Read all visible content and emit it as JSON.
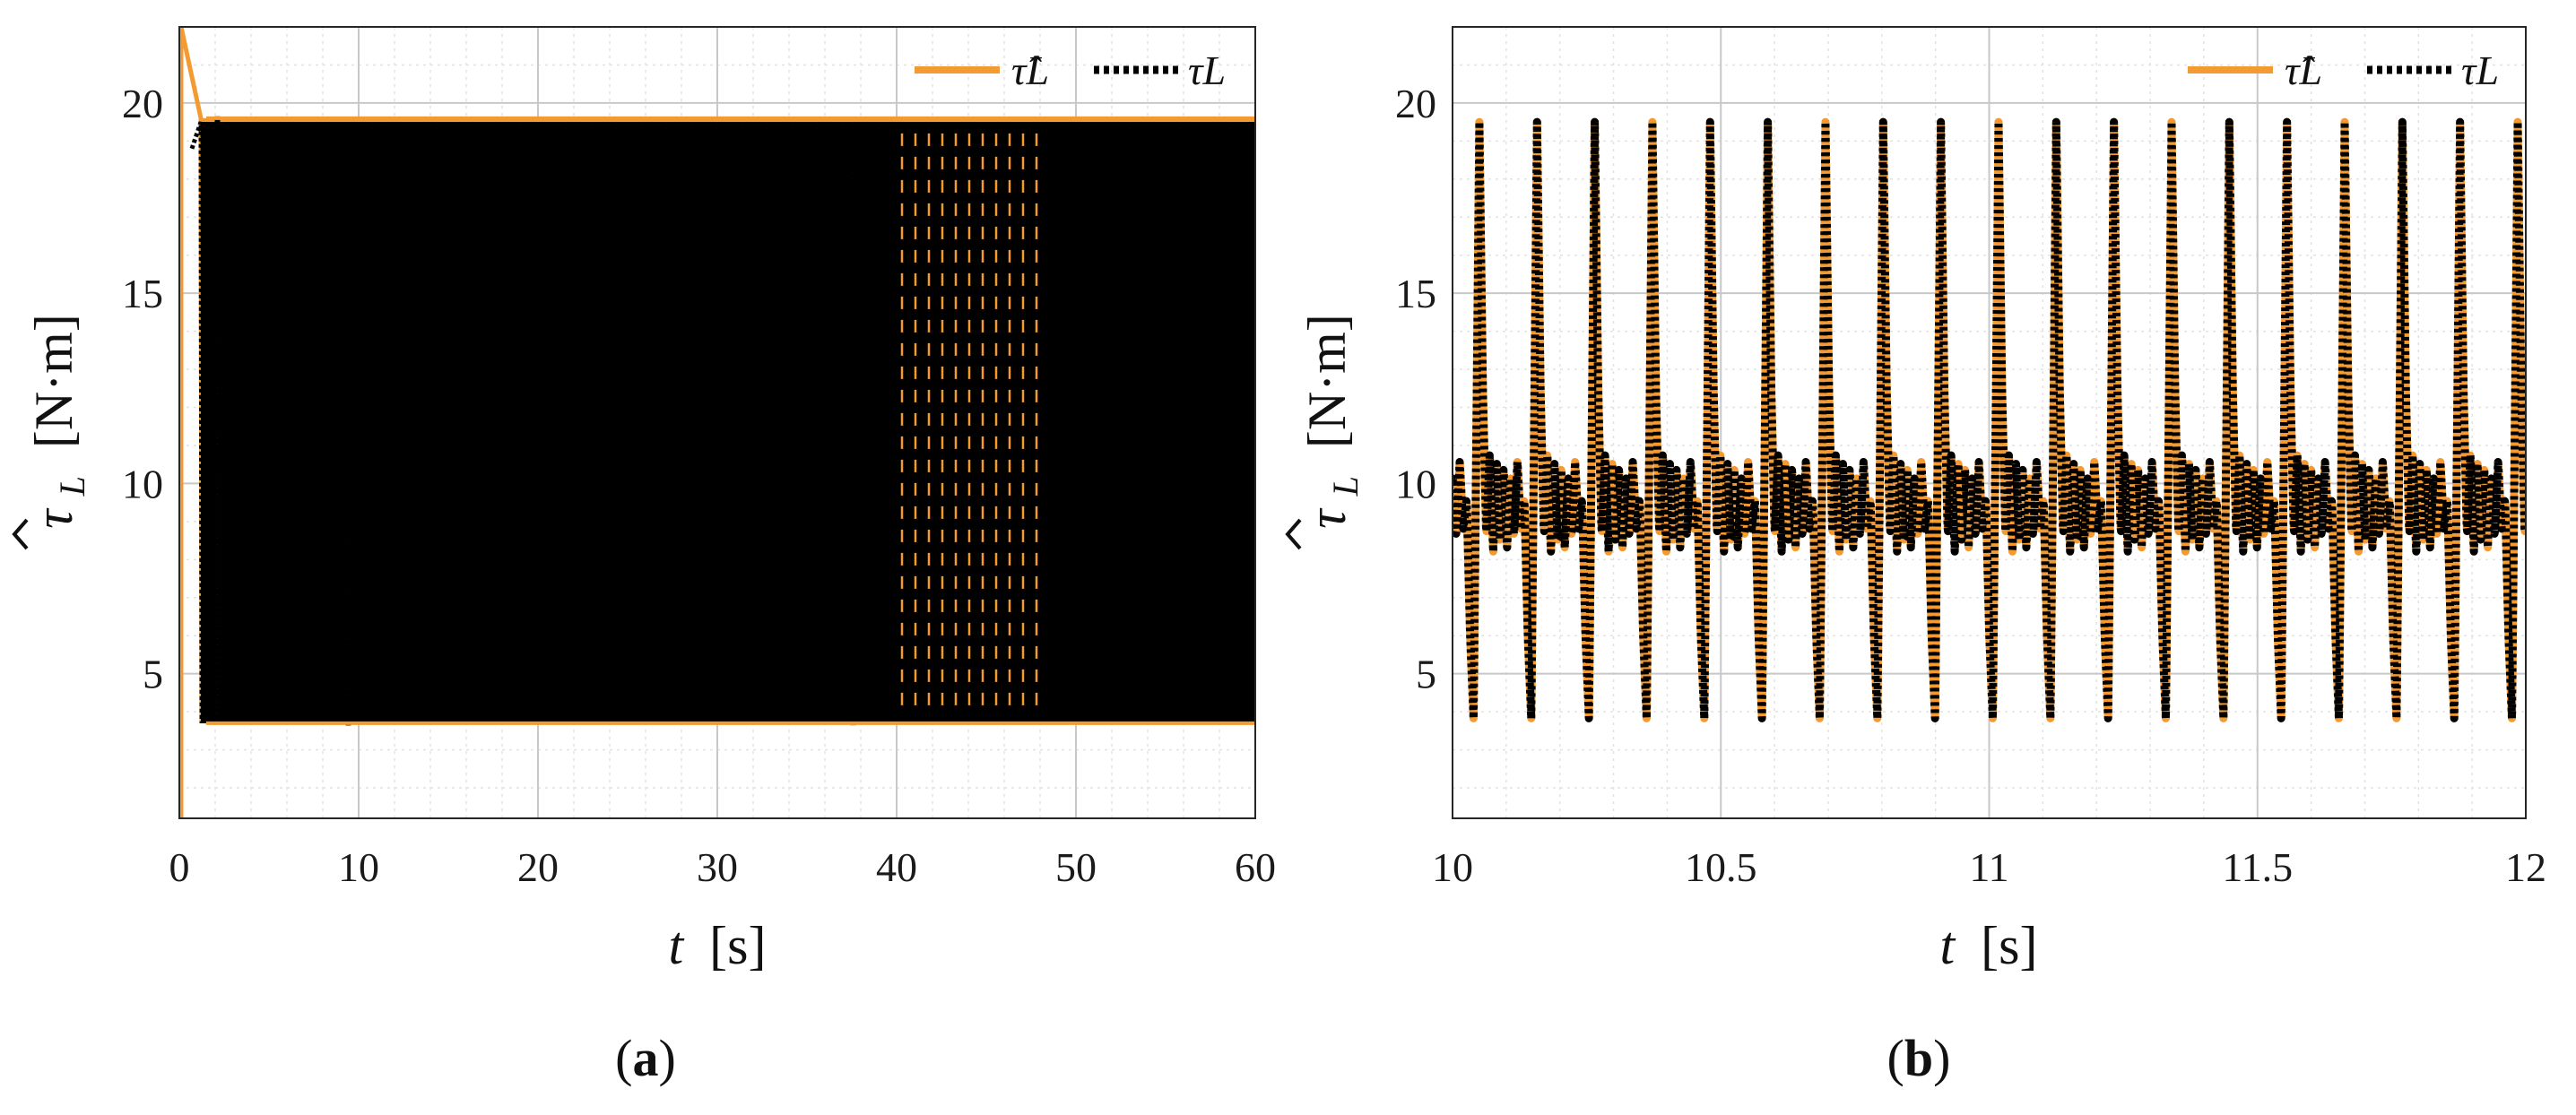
{
  "colors": {
    "estimate": "#f39a33",
    "actual": "#000000",
    "grid_major": "#c8c8c8",
    "grid_minor": "#e2e2e2"
  },
  "chart_data": [
    {
      "type": "line",
      "panel_label_parts": [
        "(",
        "a",
        ")"
      ],
      "xlabel_parts": [
        "t",
        "[s]"
      ],
      "ylabel_parts": [
        "τ",
        "L",
        "[N·m]"
      ],
      "xlim": [
        0,
        60
      ],
      "ylim": [
        1.2,
        22
      ],
      "xticks": [
        "0",
        "10",
        "20",
        "30",
        "40",
        "50",
        "60"
      ],
      "xtick_values": [
        0,
        10,
        20,
        30,
        40,
        50,
        60
      ],
      "yticks": [
        "5",
        "10",
        "15",
        "20"
      ],
      "ytick_values": [
        5,
        10,
        15,
        20
      ],
      "grid": true,
      "minor_grid": true,
      "legend_placement": "top-right",
      "series": [
        {
          "name": "τ̂L",
          "style": "solid",
          "period": 0.1,
          "min": 3.7,
          "max": 19.6,
          "t_start": 0.1,
          "t_end": 60
        },
        {
          "name": "τL",
          "style": "dotted",
          "period": 0.1,
          "min": 3.7,
          "max": 19.5,
          "t_start": 0.7,
          "t_end": 60
        }
      ]
    },
    {
      "type": "line",
      "panel_label_parts": [
        "(",
        "b",
        ")"
      ],
      "xlabel_parts": [
        "t",
        "[s]"
      ],
      "ylabel_parts": [
        "τ",
        "L",
        "[N·m]"
      ],
      "xlim": [
        10,
        12
      ],
      "ylim": [
        1.2,
        22
      ],
      "xticks": [
        "10",
        "10.5",
        "11",
        "11.5",
        "12"
      ],
      "xtick_values": [
        10,
        10.5,
        11,
        11.5,
        12
      ],
      "yticks": [
        "5",
        "10",
        "15",
        "20"
      ],
      "ytick_values": [
        5,
        10,
        15,
        20
      ],
      "grid": true,
      "minor_grid": true,
      "legend_placement": "top-right",
      "series": [
        {
          "name": "τ̂L",
          "style": "solid",
          "period": 0.1075,
          "first_peak": 10.05,
          "min": 3.8,
          "max": 19.5,
          "baseline": 9.3
        },
        {
          "name": "τL",
          "style": "dotted",
          "period": 0.1075,
          "first_peak": 10.05,
          "min": 3.8,
          "max": 19.5,
          "baseline": 9.3
        }
      ]
    }
  ]
}
